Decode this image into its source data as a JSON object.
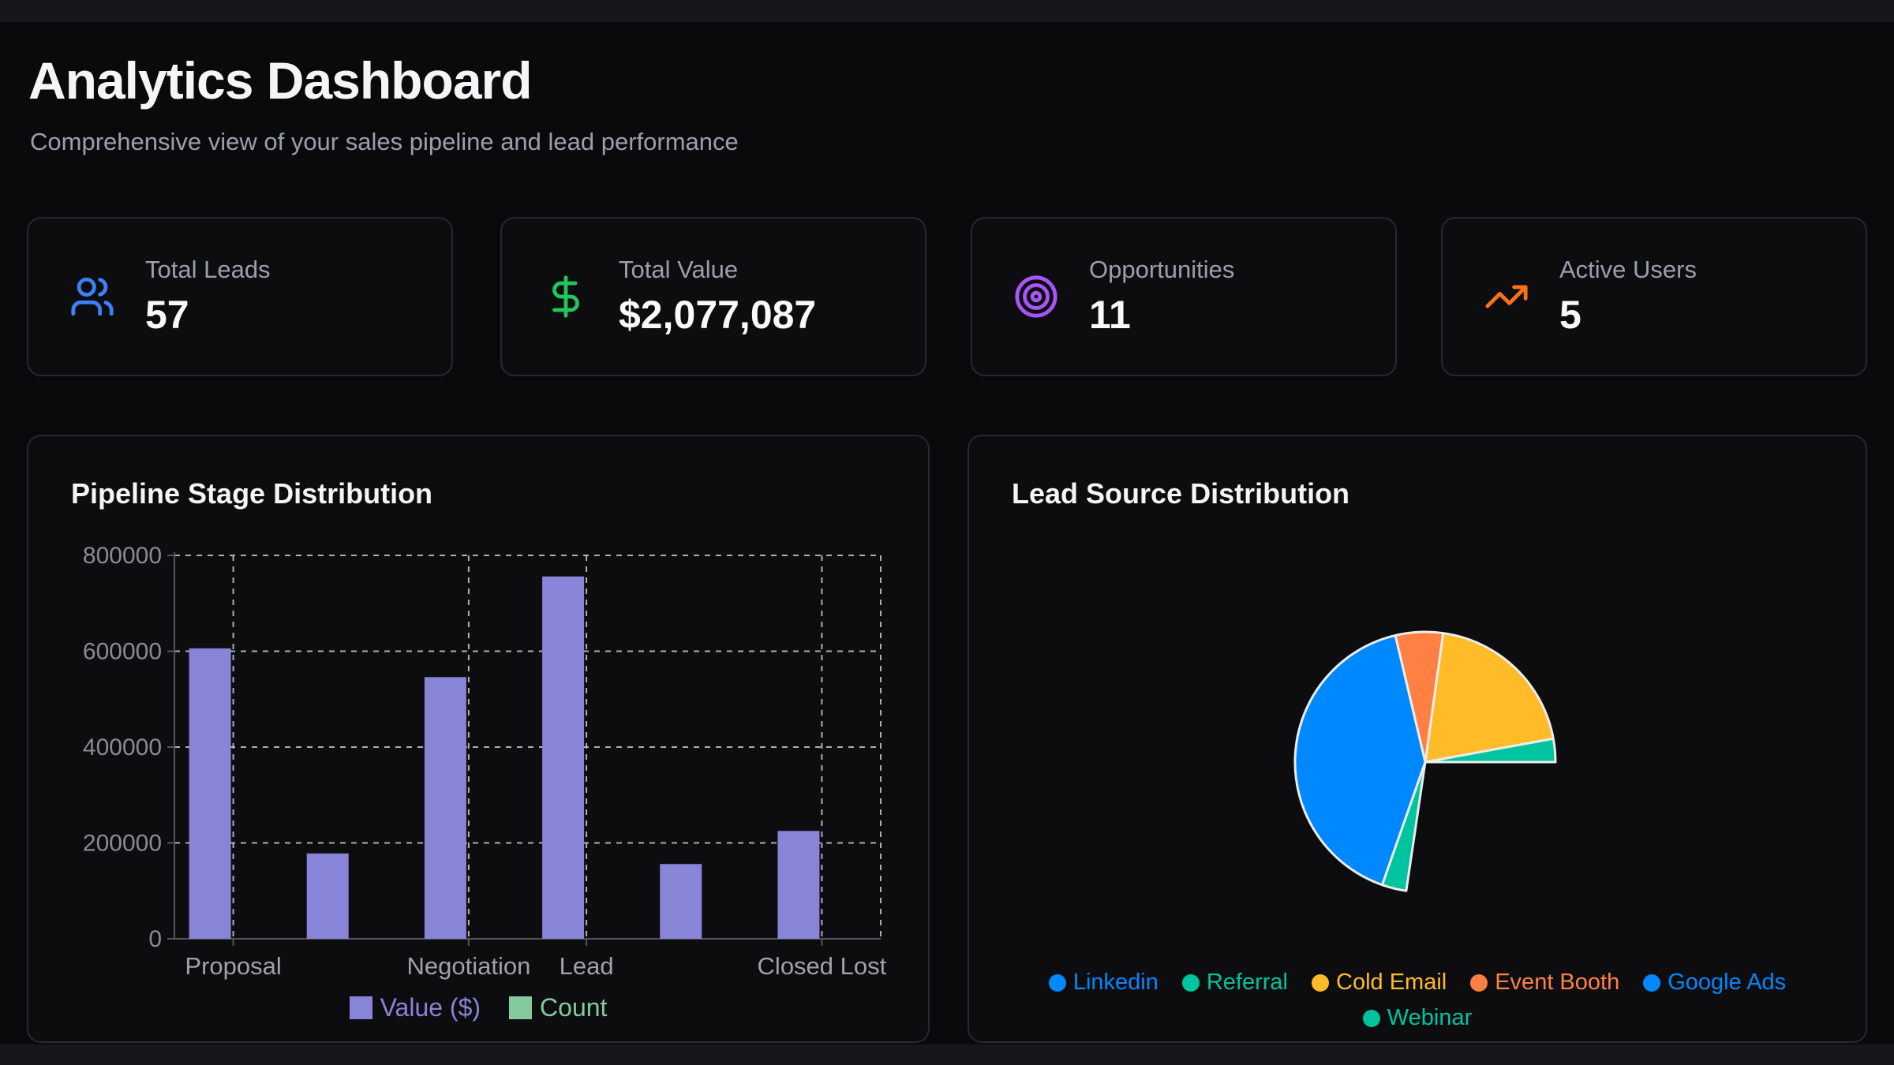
{
  "header": {
    "title": "Analytics Dashboard",
    "subtitle": "Comprehensive view of your sales pipeline and lead performance"
  },
  "stat_cards": [
    {
      "label": "Total Leads",
      "value": "57",
      "icon": "users-icon",
      "icon_color": "#3b82f6"
    },
    {
      "label": "Total Value",
      "value": "$2,077,087",
      "icon": "dollar-sign-icon",
      "icon_color": "#22c55e"
    },
    {
      "label": "Opportunities",
      "value": "11",
      "icon": "target-icon",
      "icon_color": "#a855f7"
    },
    {
      "label": "Active Users",
      "value": "5",
      "icon": "trending-up-icon",
      "icon_color": "#f97316"
    }
  ],
  "chart_data": [
    {
      "type": "bar",
      "title": "Pipeline Stage Distribution",
      "categories": [
        "Proposal",
        "",
        "Negotiation",
        "Lead",
        "",
        "Closed Lost"
      ],
      "visible_x_tick_labels": [
        "Proposal",
        "Negotiation",
        "Lead",
        "Closed Lost"
      ],
      "series": [
        {
          "name": "Value ($)",
          "color": "#8884d8",
          "values": [
            606000,
            178000,
            546000,
            756000,
            156000,
            225000
          ]
        },
        {
          "name": "Count",
          "color": "#82ca9d",
          "values": [
            0,
            0,
            0,
            0,
            0,
            0
          ]
        }
      ],
      "ylim": [
        0,
        800000
      ],
      "yticks": [
        0,
        200000,
        400000,
        600000,
        800000
      ],
      "grid": {
        "style": "dashed",
        "color": "#cccccc"
      },
      "axis_color": "#55555a",
      "y_tick_label_color": "#8b8b90",
      "x_tick_label_color": "#a1a1a7",
      "legend_position": "bottom"
    },
    {
      "type": "pie",
      "title": "Lead Source Distribution",
      "legend": [
        {
          "label": "Linkedin",
          "color": "#0088FE"
        },
        {
          "label": "Referral",
          "color": "#00C49F"
        },
        {
          "label": "Cold Email",
          "color": "#FFBB28"
        },
        {
          "label": "Event Booth",
          "color": "#FF8042"
        },
        {
          "label": "Google Ads",
          "color": "#0088FE"
        },
        {
          "label": "Webinar",
          "color": "#00C49F"
        }
      ],
      "slices": [
        {
          "label": "Referral",
          "color": "#00C49F",
          "start_deg": 0,
          "end_deg": 10.4
        },
        {
          "label": "Cold Email",
          "color": "#FFBB28",
          "start_deg": 10.4,
          "end_deg": 82.1
        },
        {
          "label": "Event Booth",
          "color": "#FF8042",
          "start_deg": 82.1,
          "end_deg": 103.3
        },
        {
          "label": "Linkedin",
          "color": "#0088FE",
          "start_deg": 103.3,
          "end_deg": 250.7
        },
        {
          "label": "Webinar",
          "color": "#00C49F",
          "start_deg": 250.7,
          "end_deg": 261.6
        }
      ],
      "unfilled_arc_deg": [
        261.6,
        360
      ],
      "slice_stroke": "#ececec"
    }
  ]
}
